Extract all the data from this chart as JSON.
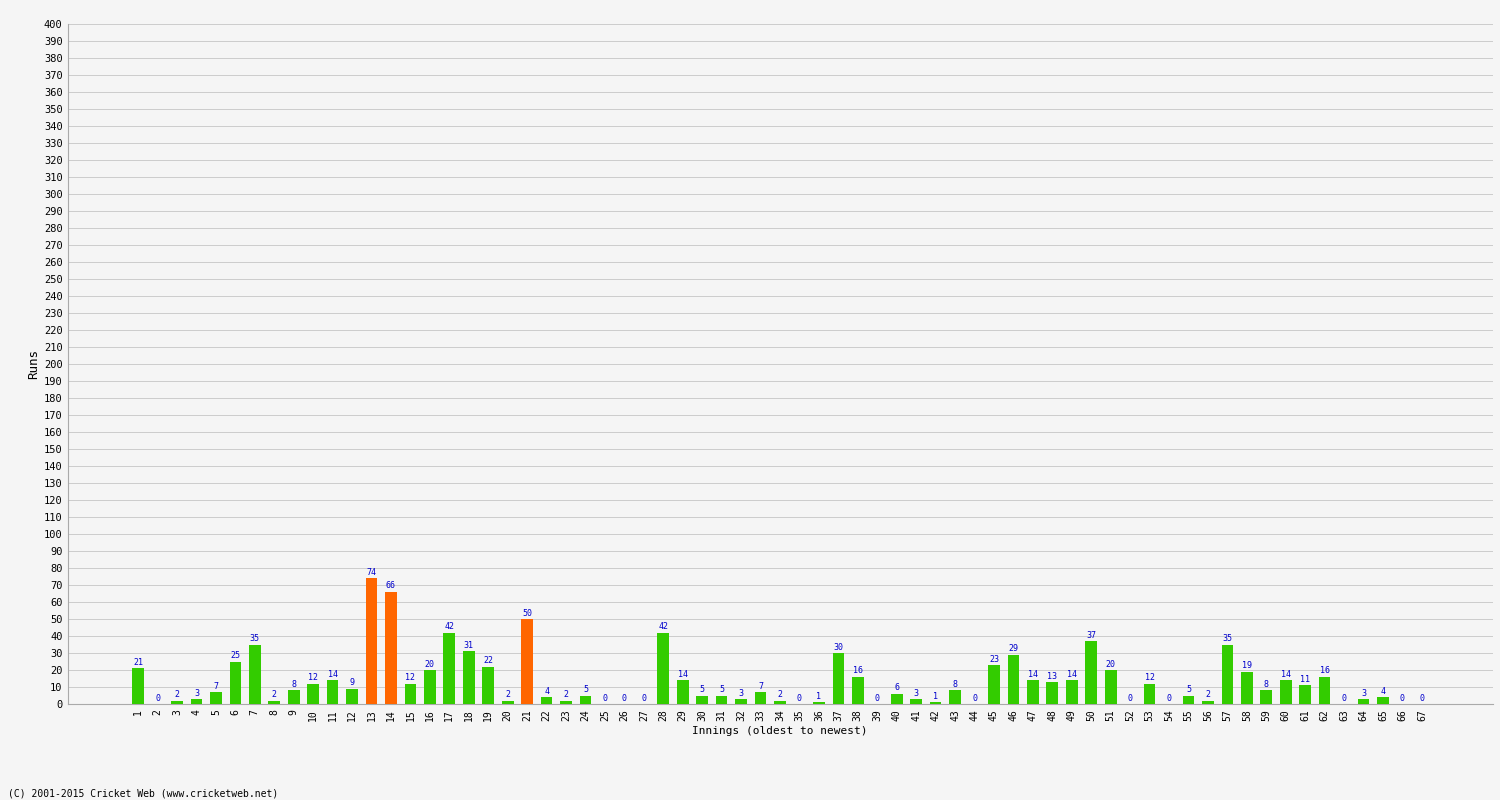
{
  "innings": [
    1,
    2,
    3,
    4,
    5,
    6,
    7,
    8,
    9,
    10,
    11,
    12,
    13,
    14,
    15,
    16,
    17,
    18,
    19,
    20,
    21,
    22,
    23,
    24,
    25,
    26,
    27,
    28,
    29,
    30,
    31,
    32,
    33,
    34,
    35,
    36,
    37,
    38,
    39,
    40,
    41,
    42,
    43,
    44,
    45,
    46,
    47,
    48,
    49,
    50,
    51,
    52,
    53,
    54,
    55,
    56,
    57,
    58,
    59,
    60,
    61,
    62,
    63,
    64,
    65,
    66,
    67
  ],
  "scores": [
    21,
    0,
    2,
    3,
    7,
    25,
    35,
    2,
    8,
    12,
    14,
    9,
    74,
    66,
    12,
    20,
    42,
    31,
    22,
    2,
    50,
    4,
    2,
    5,
    0,
    0,
    0,
    42,
    14,
    5,
    5,
    3,
    7,
    2,
    0,
    1,
    30,
    16,
    0,
    6,
    3,
    1,
    8,
    0,
    23,
    29,
    14,
    13,
    14,
    37,
    20,
    0,
    12,
    0,
    5,
    2,
    35,
    19,
    8,
    14,
    11,
    16,
    0,
    3,
    4,
    0,
    0
  ],
  "orange_innings": [
    13,
    14,
    21
  ],
  "bar_color_green": "#33cc00",
  "bar_color_orange": "#ff6600",
  "value_color": "#0000cc",
  "background_color": "#f5f5f5",
  "grid_color": "#cccccc",
  "ylabel": "Runs",
  "xlabel": "Innings (oldest to newest)",
  "ylim": [
    0,
    400
  ],
  "yticks": [
    0,
    10,
    20,
    30,
    40,
    50,
    60,
    70,
    80,
    90,
    100,
    110,
    120,
    130,
    140,
    150,
    160,
    170,
    180,
    190,
    200,
    210,
    220,
    230,
    240,
    250,
    260,
    270,
    280,
    290,
    300,
    310,
    320,
    330,
    340,
    350,
    360,
    370,
    380,
    390,
    400
  ],
  "footer": "(C) 2001-2015 Cricket Web (www.cricketweb.net)"
}
